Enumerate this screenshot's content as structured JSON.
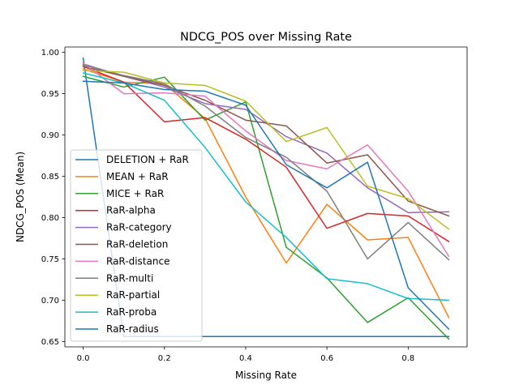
{
  "chart_data": {
    "type": "line",
    "title": "NDCG_POS over Missing Rate",
    "xlabel": "Missing Rate",
    "ylabel": "NDCG_POS (Mean)",
    "xlim": [
      -0.045,
      0.945
    ],
    "ylim": [
      0.6435,
      1.0065
    ],
    "xticks": [
      0.0,
      0.2,
      0.4,
      0.6,
      0.8
    ],
    "xtick_labels": [
      "0.0",
      "0.2",
      "0.4",
      "0.6",
      "0.8"
    ],
    "yticks": [
      0.65,
      0.7,
      0.75,
      0.8,
      0.85,
      0.9,
      0.95,
      1.0
    ],
    "ytick_labels": [
      "0.65",
      "0.70",
      "0.75",
      "0.80",
      "0.85",
      "0.90",
      "0.95",
      "1.00"
    ],
    "grid": false,
    "legend_position": "lower-left",
    "x": [
      0.0,
      0.1,
      0.2,
      0.3,
      0.4,
      0.5,
      0.6,
      0.7,
      0.8,
      0.9
    ],
    "series": [
      {
        "name": "DELETION + RaR",
        "color": "#1f77b4",
        "values": [
          0.993,
          0.656,
          0.656,
          0.656,
          0.656,
          0.656,
          0.656,
          0.656,
          0.656,
          0.656
        ]
      },
      {
        "name": "MEAN + RaR",
        "color": "#ff7f0e",
        "values": [
          0.98,
          0.964,
          0.962,
          0.92,
          0.825,
          0.745,
          0.816,
          0.773,
          0.776,
          0.679
        ]
      },
      {
        "name": "MICE + RaR",
        "color": "#2ca02c",
        "values": [
          0.971,
          0.958,
          0.97,
          0.918,
          0.94,
          0.764,
          0.727,
          0.673,
          0.703,
          0.653
        ]
      },
      {
        "name": "RaR-alpha",
        "color": "#d62728",
        "values": [
          0.983,
          0.964,
          0.916,
          0.921,
          0.895,
          0.861,
          0.787,
          0.805,
          0.802,
          0.771
        ]
      },
      {
        "name": "RaR-category",
        "color": "#9467bd",
        "values": [
          0.986,
          0.971,
          0.958,
          0.938,
          0.931,
          0.898,
          0.878,
          0.836,
          0.806,
          0.807
        ]
      },
      {
        "name": "RaR-deletion",
        "color": "#8c564b",
        "values": [
          0.983,
          0.971,
          0.96,
          0.942,
          0.918,
          0.911,
          0.866,
          0.876,
          0.82,
          0.802
        ]
      },
      {
        "name": "RaR-distance",
        "color": "#e377c2",
        "values": [
          0.987,
          0.95,
          0.951,
          0.947,
          0.905,
          0.869,
          0.859,
          0.888,
          0.832,
          0.753
        ]
      },
      {
        "name": "RaR-multi",
        "color": "#7f7f7f",
        "values": [
          0.985,
          0.972,
          0.962,
          0.935,
          0.897,
          0.873,
          0.832,
          0.75,
          0.794,
          0.749
        ]
      },
      {
        "name": "RaR-partial",
        "color": "#bcbd22",
        "values": [
          0.978,
          0.976,
          0.963,
          0.96,
          0.941,
          0.892,
          0.909,
          0.838,
          0.823,
          0.786
        ]
      },
      {
        "name": "RaR-proba",
        "color": "#17becf",
        "values": [
          0.975,
          0.963,
          0.942,
          0.885,
          0.819,
          0.776,
          0.726,
          0.72,
          0.702,
          0.7
        ]
      },
      {
        "name": "RaR-radius",
        "color": "#1f77b4",
        "values": [
          0.965,
          0.963,
          0.955,
          0.953,
          0.936,
          0.864,
          0.836,
          0.867,
          0.715,
          0.665
        ]
      }
    ]
  }
}
